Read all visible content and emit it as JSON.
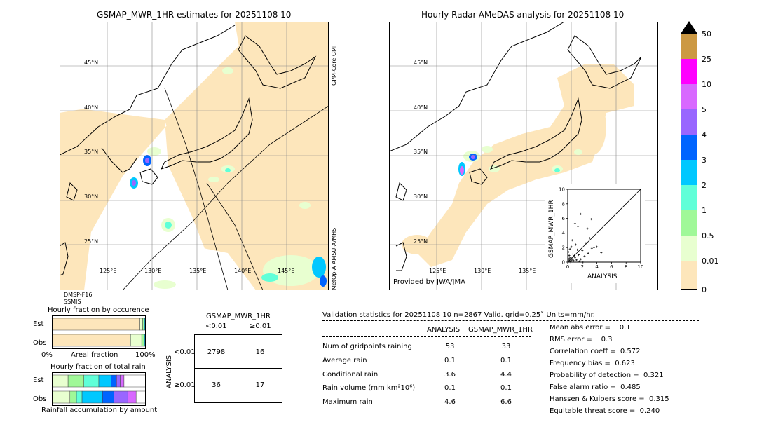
{
  "left_map": {
    "title": "GSMAP_MWR_1HR estimates for 20251108 10",
    "lat_labels": [
      "45°N",
      "40°N",
      "35°N",
      "30°N",
      "25°N"
    ],
    "lon_labels": [
      "125°E",
      "130°E",
      "135°E",
      "140°E",
      "145°E"
    ],
    "sat_labels": [
      "GPM-Core GMI",
      "MetOp-A AMSU-A/MHS"
    ],
    "bottom_label_1": "DMSP-F16",
    "bottom_label_2": "SSMIS"
  },
  "right_map": {
    "title": "Hourly Radar-AMeDAS analysis for 20251108 10",
    "lat_labels": [
      "45°N",
      "40°N",
      "35°N",
      "30°N",
      "25°N"
    ],
    "lon_labels": [
      "125°E",
      "130°E",
      "135°E"
    ],
    "provided_by": "Provided by JWA/JMA"
  },
  "colors": {
    "land_rain_free": "#fde6bb",
    "c001": "#e8ffd0",
    "c05": "#a0f898",
    "c1": "#60ffd8",
    "c2": "#00c8ff",
    "c3": "#0064ff",
    "c4": "#9966ff",
    "c5": "#d868ff",
    "c10": "#ff00ff",
    "c25": "#cc9944",
    "c50": "#000000"
  },
  "colorbar": {
    "labels": [
      "50",
      "25",
      "10",
      "5",
      "4",
      "3",
      "2",
      "1",
      "0.5",
      "0.01",
      "0"
    ]
  },
  "chart_data": [
    {
      "type": "scatter",
      "title": "",
      "xlabel": "ANALYSIS",
      "ylabel": "GSMAP_MWR_1HR",
      "xlim": [
        0,
        10
      ],
      "ylim": [
        0,
        10
      ],
      "x_ticks": [
        "0",
        "2",
        "4",
        "6",
        "8",
        "10"
      ],
      "y_ticks": [
        "0",
        "2",
        "4",
        "6",
        "8",
        "10"
      ],
      "points": [
        {
          "x": 0.1,
          "y": 0.1
        },
        {
          "x": 0.2,
          "y": 0.3
        },
        {
          "x": 0.3,
          "y": 0.1
        },
        {
          "x": 0.4,
          "y": 0.6
        },
        {
          "x": 0.5,
          "y": 0.2
        },
        {
          "x": 0.2,
          "y": 0.9
        },
        {
          "x": 0.6,
          "y": 0.4
        },
        {
          "x": 0.1,
          "y": 1.4
        },
        {
          "x": 0.8,
          "y": 0.2
        },
        {
          "x": 0.3,
          "y": 1.8
        },
        {
          "x": 1.0,
          "y": 0.6
        },
        {
          "x": 0.7,
          "y": 1.1
        },
        {
          "x": 1.2,
          "y": 0.3
        },
        {
          "x": 0.5,
          "y": 2.1
        },
        {
          "x": 1.5,
          "y": 1.0
        },
        {
          "x": 1.8,
          "y": 0.4
        },
        {
          "x": 0.2,
          "y": 0.5
        },
        {
          "x": 2.0,
          "y": 1.6
        },
        {
          "x": 1.3,
          "y": 1.7
        },
        {
          "x": 0.9,
          "y": 0.9
        },
        {
          "x": 2.3,
          "y": 0.8
        },
        {
          "x": 2.8,
          "y": 1.2
        },
        {
          "x": 3.3,
          "y": 1.9
        },
        {
          "x": 3.6,
          "y": 2.0
        },
        {
          "x": 2.5,
          "y": 2.6
        },
        {
          "x": 3.0,
          "y": 3.3
        },
        {
          "x": 2.7,
          "y": 4.6
        },
        {
          "x": 3.2,
          "y": 5.9
        },
        {
          "x": 1.8,
          "y": 6.6
        },
        {
          "x": 1.0,
          "y": 5.3
        },
        {
          "x": 1.4,
          "y": 4.9
        },
        {
          "x": 3.6,
          "y": 4.0
        },
        {
          "x": 4.0,
          "y": 2.1
        },
        {
          "x": 4.6,
          "y": 1.3
        },
        {
          "x": 1.6,
          "y": 0.1
        },
        {
          "x": 0.4,
          "y": 0.0
        },
        {
          "x": 1.1,
          "y": 2.4
        },
        {
          "x": 0.6,
          "y": 3.0
        },
        {
          "x": 2.1,
          "y": 0.0
        }
      ]
    },
    {
      "type": "bar",
      "title": "Hourly fraction by occurence",
      "xlabel": "Areal fraction",
      "x_ticks": [
        "0%",
        "100%"
      ],
      "categories": [
        "Est",
        "Obs"
      ],
      "segments": [
        [
          0.94,
          0.03,
          0.02,
          0.01
        ],
        [
          0.84,
          0.12,
          0.03,
          0.01
        ]
      ],
      "segment_colors": [
        "#fde6bb",
        "#e8ffd0",
        "#a0f898",
        "#00c8ff"
      ]
    },
    {
      "type": "bar",
      "title": "Hourly fraction of total rain",
      "xlabel": "Rainfall accumulation by amount",
      "categories": [
        "Est",
        "Obs"
      ],
      "segments": [
        [
          0.17,
          0.17,
          0.16,
          0.13,
          0.06,
          0.04,
          0.04,
          0.23
        ],
        [
          0.19,
          0.07,
          0.06,
          0.22,
          0.12,
          0.15,
          0.09,
          0.1
        ]
      ],
      "segment_colors": [
        "#e8ffd0",
        "#a0f898",
        "#60ffd8",
        "#00c8ff",
        "#0064ff",
        "#9966ff",
        "#d868ff",
        "#ffffff"
      ]
    }
  ],
  "contingency": {
    "title": "GSMAP_MWR_1HR",
    "col_headers": [
      "<0.01",
      "≥0.01"
    ],
    "side_label": "ANALYSIS",
    "row_headers": [
      "<0.01",
      "≥0.01"
    ],
    "cells": [
      [
        "2798",
        "16"
      ],
      [
        "36",
        "17"
      ]
    ]
  },
  "validation": {
    "header": "Validation statistics for 20251108 10  n=2867 Valid. grid=0.25˚ Units=mm/hr.",
    "col_analysis": "ANALYSIS",
    "col_gsmap": "GSMAP_MWR_1HR",
    "rows": [
      {
        "label": "Num of gridpoints raining",
        "a": "53",
        "g": "33"
      },
      {
        "label": "Average rain",
        "a": "0.1",
        "g": "0.1"
      },
      {
        "label": "Conditional rain",
        "a": "3.6",
        "g": "4.4"
      },
      {
        "label": "Rain volume (mm km²10⁶)",
        "a": "0.1",
        "g": "0.1"
      },
      {
        "label": "Maximum rain",
        "a": "4.6",
        "g": "6.6"
      }
    ],
    "scores": [
      "Mean abs error =    0.1",
      "RMS error =    0.3",
      "Correlation coeff =  0.572",
      "Frequency bias =  0.623",
      "Probability of detection =  0.321",
      "False alarm ratio =  0.485",
      "Hanssen & Kuipers score =  0.315",
      "Equitable threat score =  0.240"
    ]
  }
}
